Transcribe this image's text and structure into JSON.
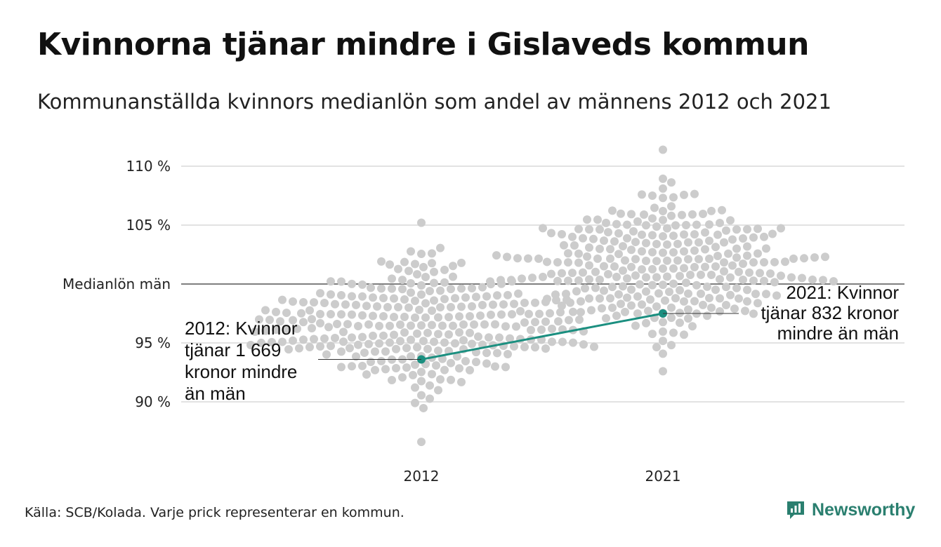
{
  "title": "Kvinnorna tjänar mindre i Gislaveds kommun",
  "subtitle": "Kommunanställda kvinnors medianlön som andel av männens 2012 och 2021",
  "source": "Källa: SCB/Kolada. Varje prick representerar en kommun.",
  "brand": {
    "name": "Newsworthy",
    "icon": "newsworthy-logo-icon"
  },
  "colors": {
    "dots": "#cccccc",
    "highlight": "#1b8f80",
    "grid": "#e2e2e2",
    "reference": "#333333"
  },
  "chart_data": {
    "type": "scatter",
    "subtype": "beeswarm",
    "categories": [
      "2012",
      "2021"
    ],
    "ylim": [
      86,
      111
    ],
    "yticks": [
      {
        "value": 110,
        "label": "110 %"
      },
      {
        "value": 105,
        "label": "105 %"
      },
      {
        "value": 100,
        "label": "Medianlön män"
      },
      {
        "value": 95,
        "label": "95 %"
      },
      {
        "value": 90,
        "label": "90 %"
      }
    ],
    "reference_line": {
      "value": 100,
      "label": "Medianlön män"
    },
    "distributions": [
      {
        "category": "2012",
        "min": 86.6,
        "max": 105.2,
        "center": 96.5,
        "spread": 2.7,
        "count": 290
      },
      {
        "category": "2021",
        "min": 92.6,
        "max": 111.4,
        "center": 101.3,
        "spread": 2.8,
        "count": 290
      }
    ],
    "highlight": {
      "name": "Gislaved",
      "points": [
        {
          "x": "2012",
          "y": 93.6
        },
        {
          "x": "2021",
          "y": 97.5
        }
      ]
    },
    "annotations": [
      {
        "x": "2012",
        "lines": [
          "2012: Kvinnor",
          "tjänar 1 669",
          "kronor mindre",
          "än män"
        ]
      },
      {
        "x": "2021",
        "lines": [
          "2021: Kvinnor",
          "tjänar 832 kronor",
          "mindre än män"
        ]
      }
    ]
  }
}
